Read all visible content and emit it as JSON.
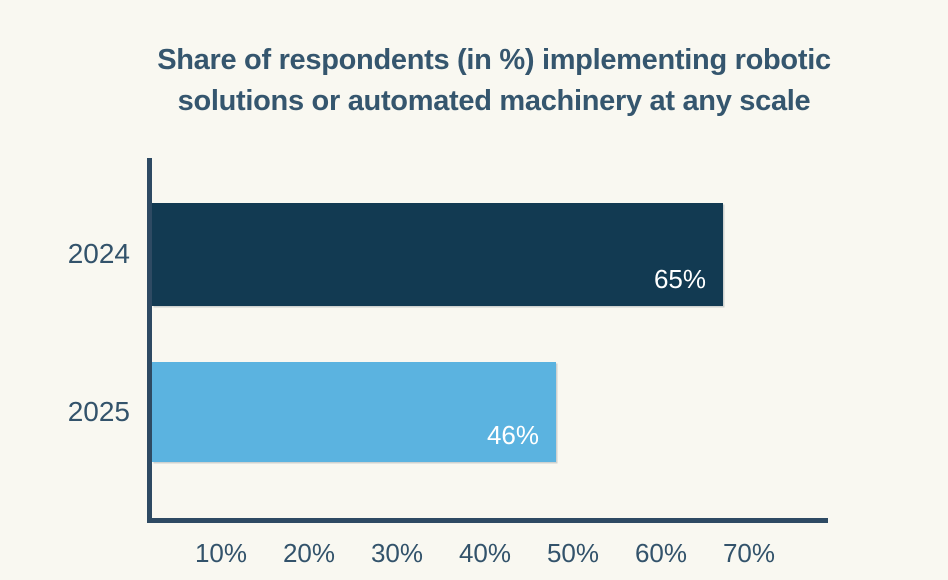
{
  "page": {
    "background": "#f9f8f1"
  },
  "title": {
    "full": "Share of respondents (in %) implementing robotic solutions or automated machinery at any scale",
    "line1": "Share of respondents (in %) implementing robotic",
    "line2": "solutions or automated machinery at any scale"
  },
  "chart_data": {
    "type": "bar",
    "orientation": "horizontal",
    "title": "Share of respondents (in %) implementing robotic solutions or automated machinery at any scale",
    "categories": [
      "2024",
      "2025"
    ],
    "values": [
      65,
      46
    ],
    "value_labels": [
      "65%",
      "46%"
    ],
    "series": [
      {
        "name": "Share of respondents implementing robotic solutions",
        "values": [
          65,
          46
        ]
      }
    ],
    "bar_colors": [
      "#123a52",
      "#5bb3e0"
    ],
    "x_ticks": [
      {
        "value": 10,
        "label": "10%"
      },
      {
        "value": 20,
        "label": "20%"
      },
      {
        "value": 30,
        "label": "30%"
      },
      {
        "value": 40,
        "label": "40%"
      },
      {
        "value": 50,
        "label": "50%"
      },
      {
        "value": 60,
        "label": "60%"
      },
      {
        "value": 70,
        "label": "70%"
      }
    ],
    "xlim": [
      0,
      77
    ],
    "xlabel": "",
    "ylabel": "",
    "grid": false,
    "legend": "none",
    "colors": {
      "title": "#35566e",
      "axis": "#2e4a63",
      "tick_label": "#33536b",
      "category_label": "#33536b",
      "value_label": "#ffffff",
      "background": "#f9f8f1"
    }
  }
}
